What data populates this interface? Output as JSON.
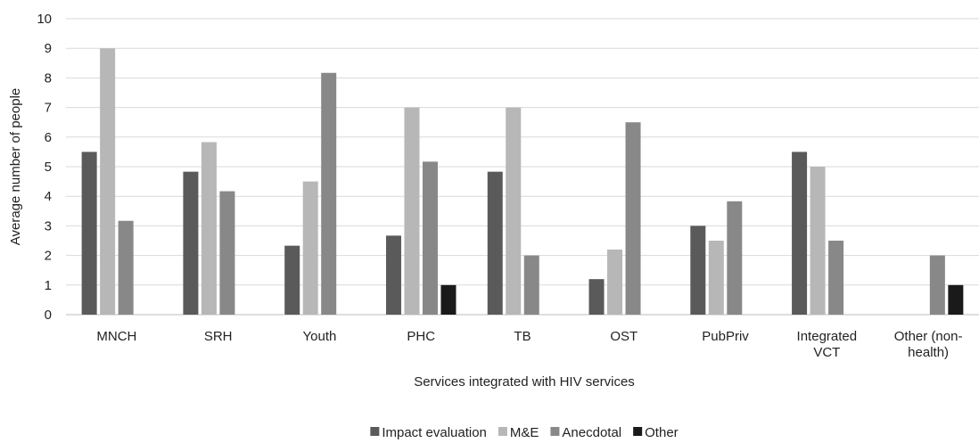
{
  "chart_data": {
    "type": "bar",
    "categories": [
      [
        "MNCH"
      ],
      [
        "SRH"
      ],
      [
        "Youth"
      ],
      [
        "PHC"
      ],
      [
        "TB"
      ],
      [
        "OST"
      ],
      [
        "PubPriv"
      ],
      [
        "Integrated",
        "VCT"
      ],
      [
        "Other (non-",
        "health)"
      ]
    ],
    "series": [
      {
        "name": "Impact evaluation",
        "color": "#5a5a5a",
        "values": [
          5.5,
          4.83,
          2.33,
          2.67,
          4.83,
          1.2,
          3.0,
          5.5,
          null
        ]
      },
      {
        "name": "M&E",
        "color": "#b7b7b7",
        "values": [
          9.0,
          5.83,
          4.5,
          7.0,
          7.0,
          2.2,
          2.5,
          5.0,
          null
        ]
      },
      {
        "name": "Anecdotal",
        "color": "#888888",
        "values": [
          3.17,
          4.17,
          8.17,
          5.17,
          2.0,
          6.5,
          3.83,
          2.5,
          2.0
        ]
      },
      {
        "name": "Other",
        "color": "#1a1a1a",
        "values": [
          null,
          null,
          null,
          1.0,
          null,
          null,
          null,
          null,
          1.0
        ]
      }
    ],
    "xlabel": "Services integrated with HIV services",
    "ylabel": "Average number of people",
    "ylim": [
      0,
      10
    ],
    "yticks": [
      0,
      1,
      2,
      3,
      4,
      5,
      6,
      7,
      8,
      9,
      10
    ],
    "grid": true,
    "legend_position": "bottom"
  }
}
